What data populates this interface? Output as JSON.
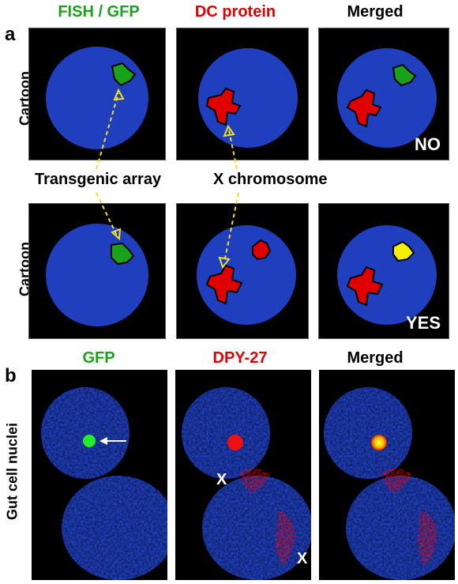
{
  "panel_a": {
    "letter": "a",
    "headers": {
      "fish_gfp": "FISH / GFP",
      "dc_protein": "DC protein",
      "merged": "Merged"
    },
    "row_label": "Cartoon",
    "row1_result": "NO",
    "row2_result": "YES",
    "arrow_labels": {
      "transgenic": "Transgenic array",
      "xchrom": "X chromosome"
    }
  },
  "panel_b": {
    "letter": "b",
    "headers": {
      "gfp": "GFP",
      "dpy27": "DPY-27",
      "merged": "Merged"
    },
    "row_label": "Gut cell nuclei",
    "x_mark_1": "X",
    "x_mark_2": "X"
  },
  "colors": {
    "green": "#1aa31a",
    "red": "#e00000",
    "nucleus_blue": "#1f3fbf",
    "arrow_yellow": "#f0e020"
  }
}
